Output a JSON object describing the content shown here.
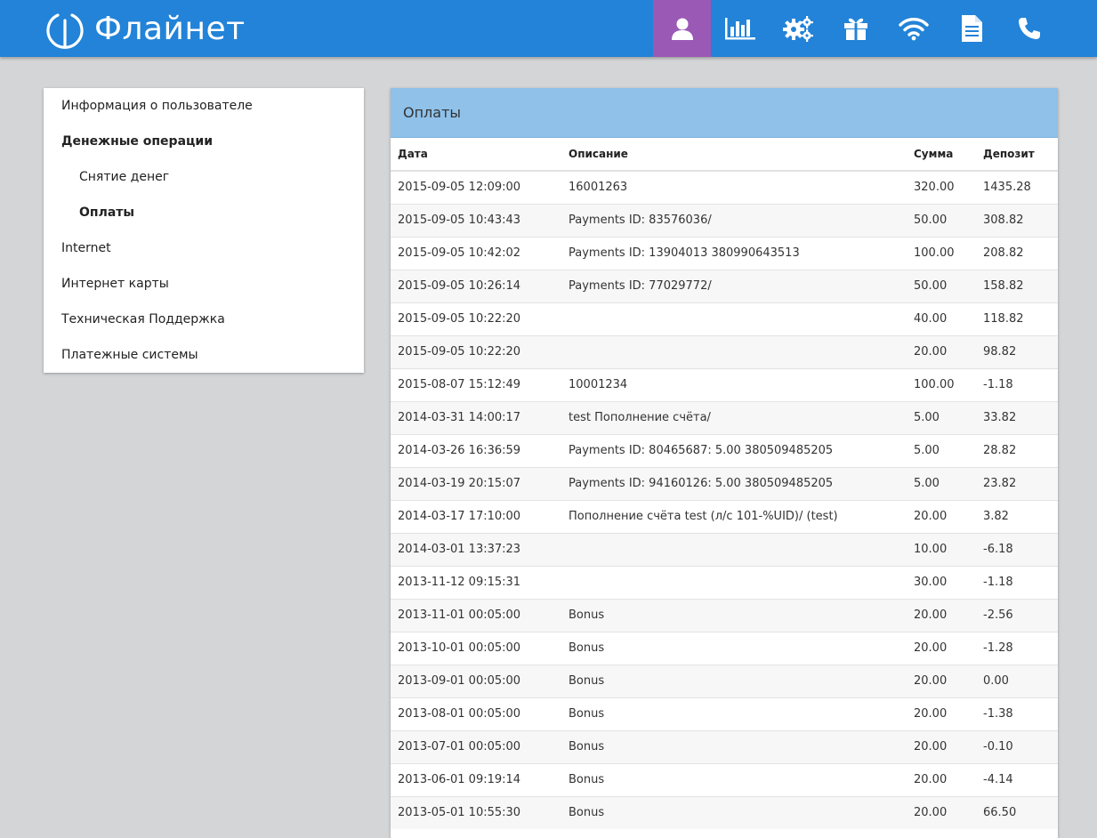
{
  "app": {
    "title": "Флайнет",
    "accent": "#2283d8",
    "active_tab_color": "#9b59b6"
  },
  "nav": [
    {
      "icon": "user-icon",
      "active": true
    },
    {
      "icon": "bar-chart-icon",
      "active": false
    },
    {
      "icon": "gears-icon",
      "active": false
    },
    {
      "icon": "gift-icon",
      "active": false
    },
    {
      "icon": "wifi-icon",
      "active": false
    },
    {
      "icon": "document-icon",
      "active": false
    },
    {
      "icon": "phone-icon",
      "active": false
    }
  ],
  "sidebar": {
    "items": [
      {
        "label": "Информация о пользователе"
      },
      {
        "label": "Денежные операции"
      },
      {
        "label": "Снятие денег"
      },
      {
        "label": "Оплаты"
      },
      {
        "label": "Internet"
      },
      {
        "label": "Интернет карты"
      },
      {
        "label": "Техническая Поддержка"
      },
      {
        "label": "Платежные системы"
      }
    ]
  },
  "payments": {
    "title": "Оплаты",
    "columns": {
      "date": "Дата",
      "desc": "Описание",
      "sum": "Сумма",
      "deposit": "Депозит"
    },
    "rows": [
      {
        "date": "2015-09-05 12:09:00",
        "desc": "16001263",
        "sum": "320.00",
        "deposit": "1435.28"
      },
      {
        "date": "2015-09-05 10:43:43",
        "desc": "Payments ID: 83576036/",
        "sum": "50.00",
        "deposit": "308.82"
      },
      {
        "date": "2015-09-05 10:42:02",
        "desc": "Payments ID: 13904013 380990643513",
        "sum": "100.00",
        "deposit": "208.82"
      },
      {
        "date": "2015-09-05 10:26:14",
        "desc": "Payments ID: 77029772/",
        "sum": "50.00",
        "deposit": "158.82"
      },
      {
        "date": "2015-09-05 10:22:20",
        "desc": "",
        "sum": "40.00",
        "deposit": "118.82"
      },
      {
        "date": "2015-09-05 10:22:20",
        "desc": "",
        "sum": "20.00",
        "deposit": "98.82"
      },
      {
        "date": "2015-08-07 15:12:49",
        "desc": "10001234",
        "sum": "100.00",
        "deposit": "-1.18"
      },
      {
        "date": "2014-03-31 14:00:17",
        "desc": "test Пополнение счёта/",
        "sum": "5.00",
        "deposit": "33.82"
      },
      {
        "date": "2014-03-26 16:36:59",
        "desc": "Payments ID: 80465687: 5.00 380509485205",
        "sum": "5.00",
        "deposit": "28.82"
      },
      {
        "date": "2014-03-19 20:15:07",
        "desc": "Payments ID: 94160126: 5.00 380509485205",
        "sum": "5.00",
        "deposit": "23.82"
      },
      {
        "date": "2014-03-17 17:10:00",
        "desc": "Пополнение счёта test (л/с 101-%UID)/ (test)",
        "sum": "20.00",
        "deposit": "3.82"
      },
      {
        "date": "2014-03-01 13:37:23",
        "desc": "",
        "sum": "10.00",
        "deposit": "-6.18"
      },
      {
        "date": "2013-11-12 09:15:31",
        "desc": "",
        "sum": "30.00",
        "deposit": "-1.18"
      },
      {
        "date": "2013-11-01 00:05:00",
        "desc": "Bonus",
        "sum": "20.00",
        "deposit": "-2.56"
      },
      {
        "date": "2013-10-01 00:05:00",
        "desc": "Bonus",
        "sum": "20.00",
        "deposit": "-1.28"
      },
      {
        "date": "2013-09-01 00:05:00",
        "desc": "Bonus",
        "sum": "20.00",
        "deposit": "0.00"
      },
      {
        "date": "2013-08-01 00:05:00",
        "desc": "Bonus",
        "sum": "20.00",
        "deposit": "-1.38"
      },
      {
        "date": "2013-07-01 00:05:00",
        "desc": "Bonus",
        "sum": "20.00",
        "deposit": "-0.10"
      },
      {
        "date": "2013-06-01 09:19:14",
        "desc": "Bonus",
        "sum": "20.00",
        "deposit": "-4.14"
      },
      {
        "date": "2013-05-01 10:55:30",
        "desc": "Bonus",
        "sum": "20.00",
        "deposit": "66.50"
      }
    ]
  }
}
